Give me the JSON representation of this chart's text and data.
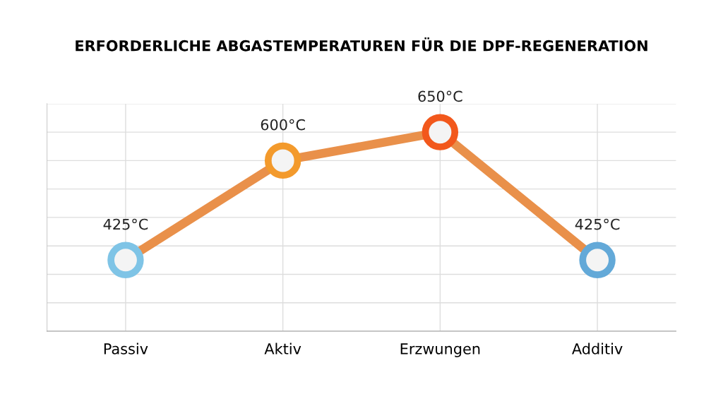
{
  "chart_data": {
    "type": "line",
    "title": "ERFORDERLICHE ABGASTEMPERATUREN FÜR DIE DPF-REGENERATION",
    "categories": [
      "Passiv",
      "Aktiv",
      "Erzwungen",
      "Additiv"
    ],
    "series": [
      {
        "color": "#e9904a",
        "colors": [
          "#7fc4e6",
          "#f39a2c",
          "#f2581c",
          "#63a9d8"
        ],
        "values": [
          425,
          600,
          650,
          425
        ],
        "value_labels": [
          "425°C",
          "600°C",
          "650°C",
          "425°C"
        ]
      }
    ],
    "marker": "circle",
    "line_style": "solid",
    "grid": true,
    "tick_labels": "x",
    "relative": false
  }
}
